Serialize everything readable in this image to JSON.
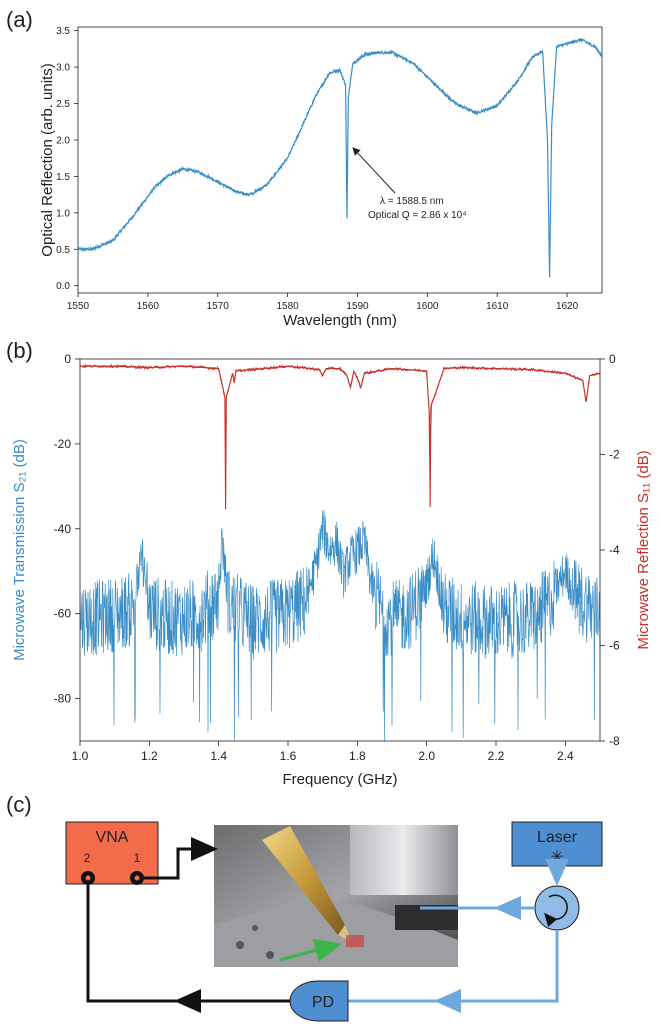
{
  "chart_data": [
    {
      "panel_label": "(a)",
      "type": "line",
      "xlabel": "Wavelength (nm)",
      "ylabel": "Optical Reflection (arb. units)",
      "xlim": [
        1550,
        1625
      ],
      "ylim": [
        -0.1,
        3.55
      ],
      "xticks": [
        "1550",
        "1560",
        "1570",
        "1580",
        "1590",
        "1600",
        "1610",
        "1620"
      ],
      "yticks": [
        "0.0",
        "0.5",
        "1.0",
        "1.5",
        "2.0",
        "2.5",
        "3.0",
        "3.5"
      ],
      "series": [
        {
          "color": "#3a8dc5",
          "x": [
            1550,
            1552,
            1555,
            1558,
            1561,
            1563,
            1565,
            1567,
            1569,
            1572,
            1574,
            1575,
            1577,
            1580,
            1582,
            1584,
            1586,
            1587.5,
            1588.3,
            1588.5,
            1588.7,
            1589.3,
            1591,
            1593,
            1595,
            1598,
            1601,
            1604,
            1607,
            1610,
            1613,
            1615,
            1616.5,
            1617.2,
            1617.5,
            1617.8,
            1618.5,
            1620,
            1622,
            1624,
            1625
          ],
          "y": [
            0.5,
            0.5,
            0.62,
            0.97,
            1.35,
            1.52,
            1.6,
            1.57,
            1.48,
            1.32,
            1.25,
            1.27,
            1.38,
            1.75,
            2.17,
            2.6,
            2.92,
            2.96,
            2.75,
            0.92,
            2.6,
            3.04,
            3.17,
            3.2,
            3.2,
            3.05,
            2.77,
            2.5,
            2.37,
            2.47,
            2.82,
            3.13,
            3.22,
            2.0,
            0.12,
            2.2,
            3.28,
            3.32,
            3.38,
            3.28,
            3.15
          ]
        }
      ],
      "annotation": {
        "line1": "λ = 1588.5 nm",
        "line2": "Optical Q = 2.86 x 10⁴",
        "arrow_target": [
          1588.6,
          1.88
        ]
      }
    },
    {
      "panel_label": "(b)",
      "type": "line",
      "xlabel": "Frequency (GHz)",
      "ylabel_left": "Microwave Transmission S₂₁ (dB)",
      "ylabel_right": "Microwave Reflection S₁₁ (dB)",
      "xlim": [
        1.0,
        2.5
      ],
      "ylim_left": [
        -90,
        0
      ],
      "ylim_right": [
        -8,
        0
      ],
      "xticks": [
        "1.0",
        "1.2",
        "1.4",
        "1.6",
        "1.8",
        "2.0",
        "2.2",
        "2.4"
      ],
      "yticks_left": [
        "0",
        "-20",
        "-40",
        "-60",
        "-80"
      ],
      "yticks_right": [
        "0",
        "-2",
        "-4",
        "-6",
        "-8"
      ],
      "series": [
        {
          "axis": "left",
          "color": "#3a8dc5",
          "x": [
            1.0,
            1.05,
            1.1,
            1.15,
            1.18,
            1.2,
            1.25,
            1.3,
            1.35,
            1.4,
            1.41,
            1.43,
            1.5,
            1.55,
            1.6,
            1.65,
            1.68,
            1.7,
            1.72,
            1.74,
            1.76,
            1.78,
            1.8,
            1.82,
            1.84,
            1.88,
            1.92,
            1.96,
            2.0,
            2.02,
            2.05,
            2.1,
            2.2,
            2.3,
            2.35,
            2.4,
            2.43,
            2.5
          ],
          "y": [
            -61,
            -61,
            -60,
            -59,
            -47,
            -59,
            -61,
            -61,
            -60,
            -56,
            -43,
            -58,
            -62,
            -61,
            -60,
            -57,
            -49,
            -40,
            -45,
            -43,
            -51,
            -47,
            -45,
            -43,
            -53,
            -61,
            -61,
            -59,
            -53,
            -46,
            -59,
            -61,
            -62,
            -61,
            -58,
            -50,
            -56,
            -60
          ],
          "noise_amplitude": 9,
          "spikes": [
            -85,
            -88,
            -84,
            -89,
            -86,
            -83,
            -87,
            -82
          ]
        },
        {
          "axis": "right",
          "color": "#c8302a",
          "x": [
            1.0,
            1.1,
            1.2,
            1.3,
            1.4,
            1.418,
            1.42,
            1.422,
            1.44,
            1.445,
            1.45,
            1.5,
            1.6,
            1.69,
            1.7,
            1.71,
            1.75,
            1.77,
            1.78,
            1.79,
            1.8,
            1.81,
            1.82,
            1.9,
            2.0,
            2.008,
            2.01,
            2.012,
            2.05,
            2.1,
            2.2,
            2.3,
            2.4,
            2.45,
            2.46,
            2.47,
            2.5
          ],
          "y": [
            -0.15,
            -0.15,
            -0.18,
            -0.15,
            -0.2,
            -0.8,
            -3.15,
            -0.8,
            -0.3,
            -0.5,
            -0.25,
            -0.22,
            -0.15,
            -0.22,
            -0.35,
            -0.2,
            -0.2,
            -0.35,
            -0.6,
            -0.25,
            -0.4,
            -0.6,
            -0.3,
            -0.2,
            -0.25,
            -1.2,
            -3.1,
            -1.0,
            -0.2,
            -0.18,
            -0.2,
            -0.22,
            -0.3,
            -0.45,
            -0.9,
            -0.35,
            -0.3
          ]
        }
      ]
    }
  ],
  "diagram": {
    "panel_label": "(c)",
    "vna_label": "VNA",
    "port2_label": "2",
    "port1_label": "1",
    "laser_label": "Laser",
    "laser_symbol": "✳",
    "pd_label": "PD",
    "colors": {
      "vna_fill": "#f26b4a",
      "laser_fill": "#4d8fd0",
      "fiber": "#6fa8dc",
      "cable": "#111111",
      "green_arrow": "#3ab54a"
    }
  }
}
